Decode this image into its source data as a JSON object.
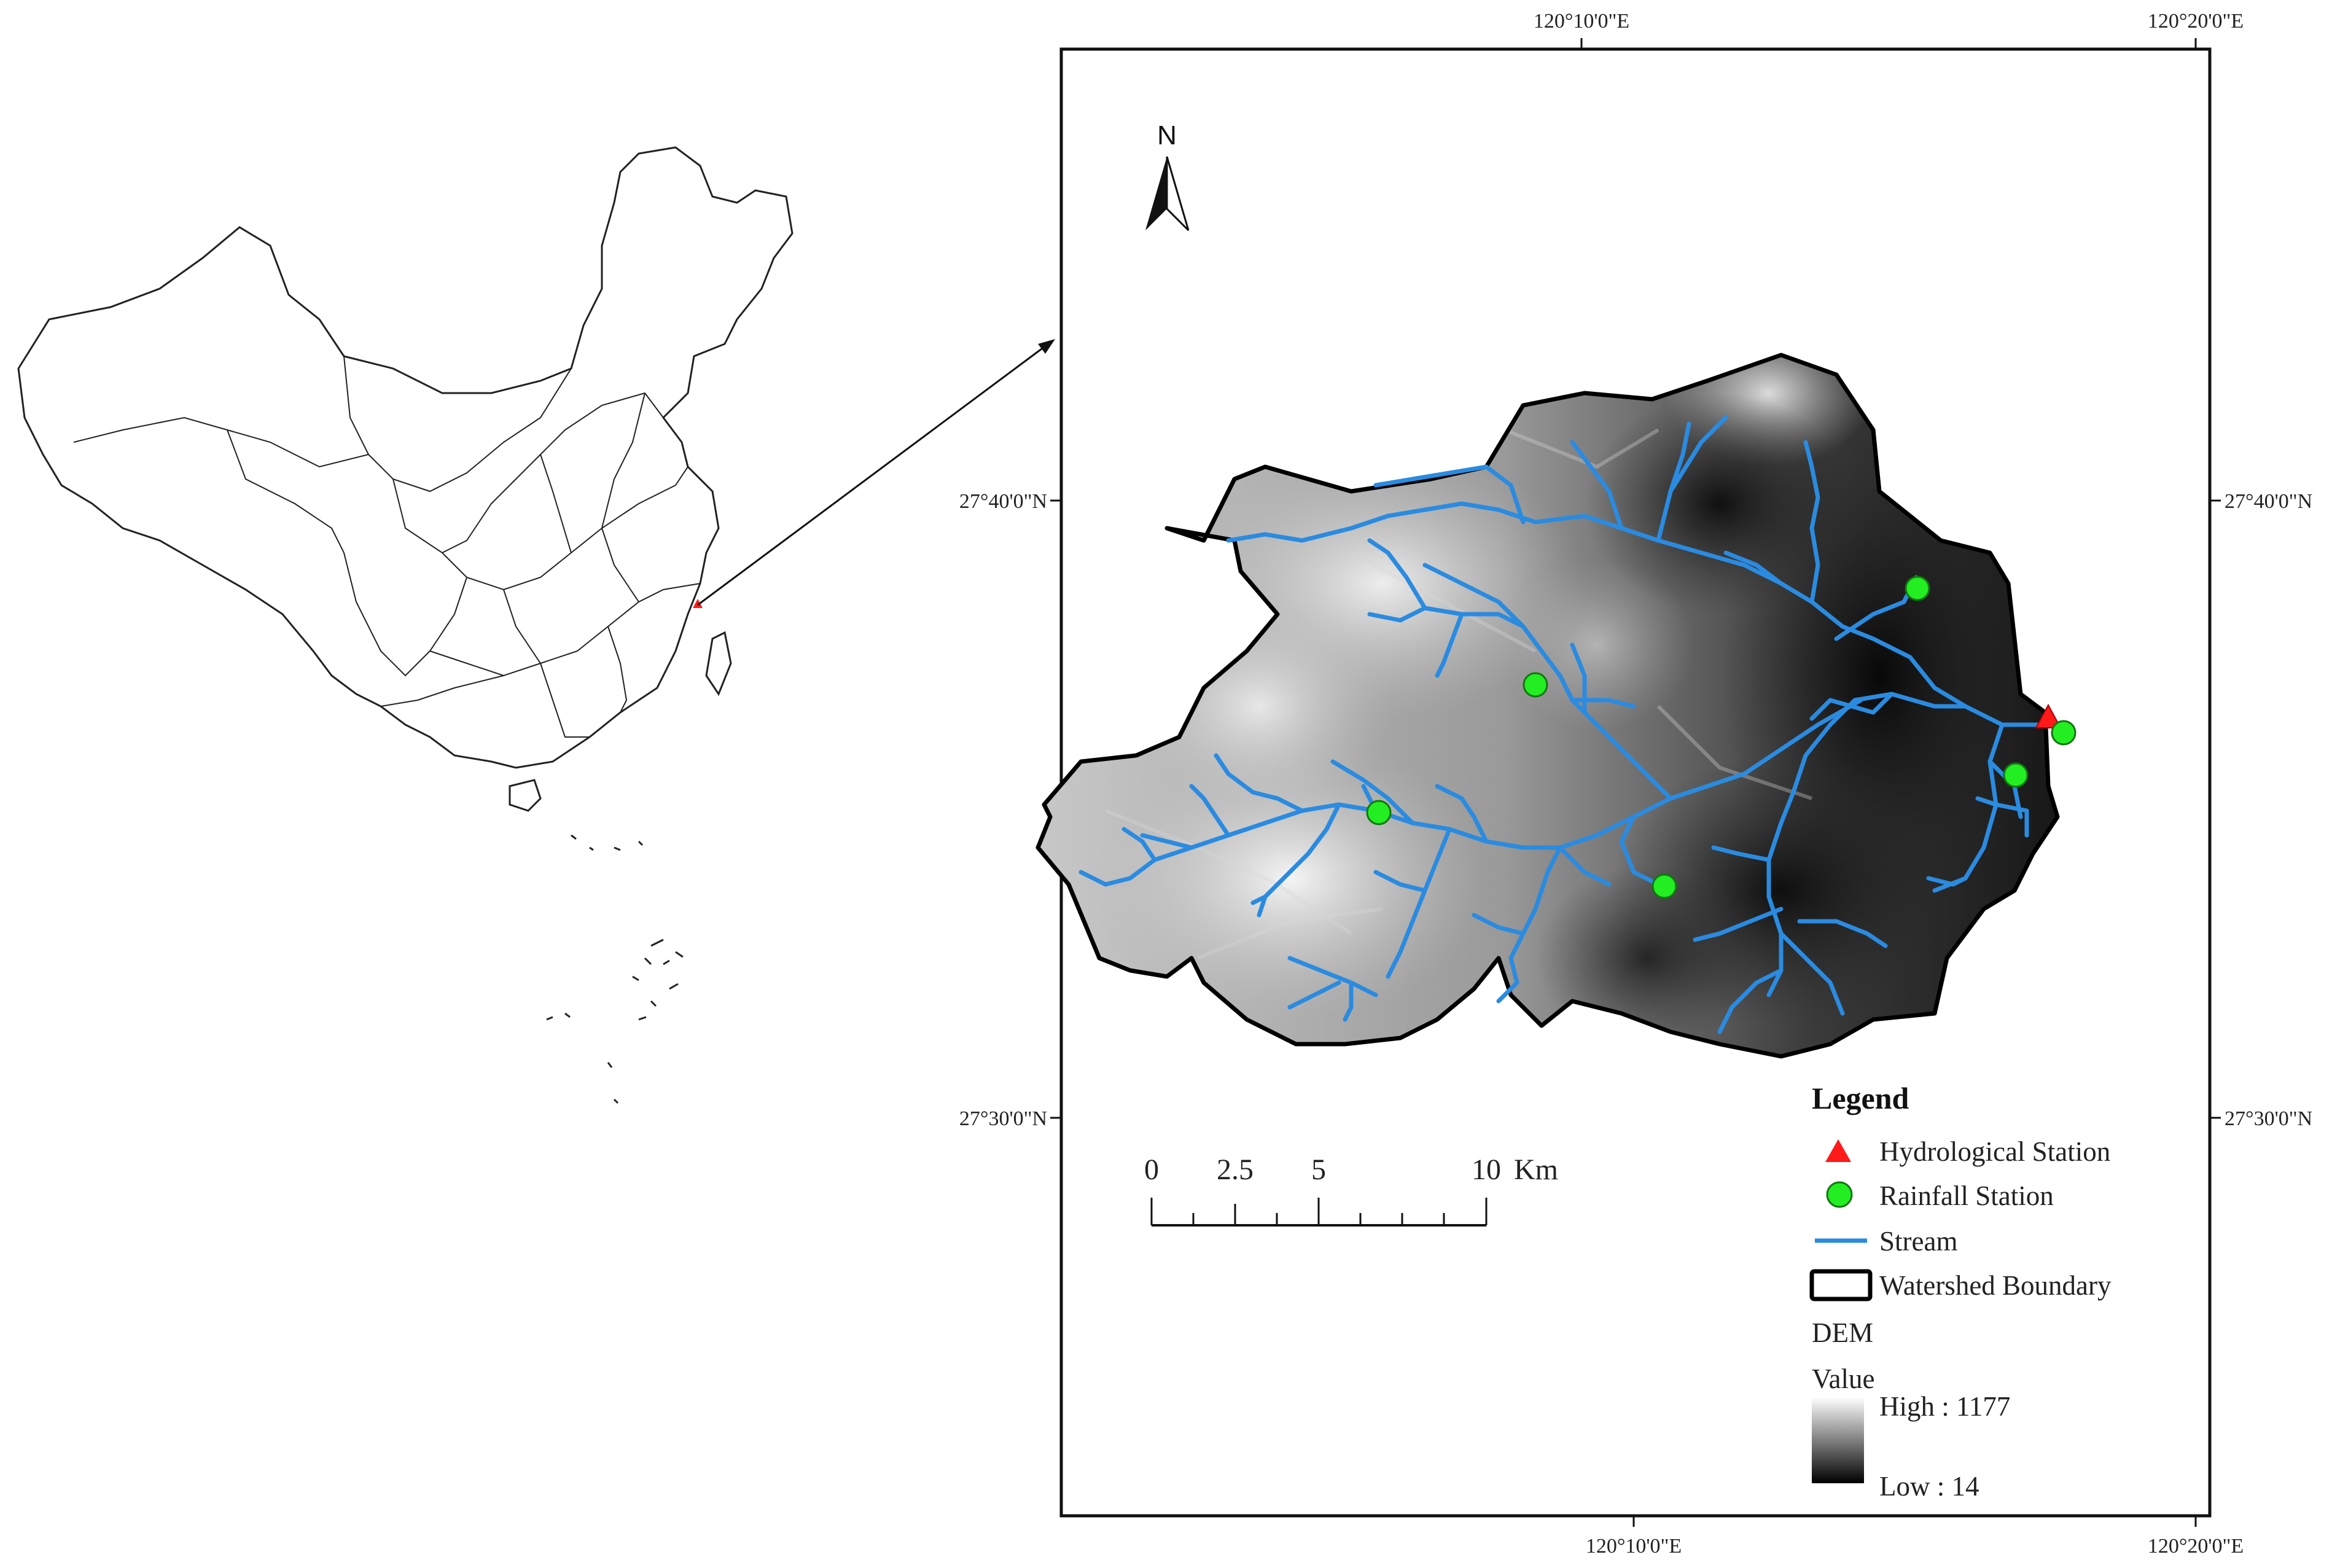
{
  "graticule": {
    "top_labels": [
      "120°10'0\"E",
      "120°20'0\"E"
    ],
    "bottom_labels": [
      "120°10'0\"E",
      "120°20'0\"E"
    ],
    "left_labels": [
      "27°40'0\"N",
      "27°30'0\"N"
    ],
    "right_labels": [
      "27°40'0\"N",
      "27°30'0\"N"
    ]
  },
  "north_arrow": {
    "label": "N",
    "icon": "north-arrow-icon"
  },
  "scale_bar": {
    "ticks": [
      "0",
      "2.5",
      "5",
      "10"
    ],
    "unit": "Km"
  },
  "legend": {
    "title": "Legend",
    "items": [
      {
        "label": "Hydrological Station",
        "icon": "red-triangle-icon",
        "color": "#ff1a1a"
      },
      {
        "label": "Rainfall Station",
        "icon": "green-circle-icon",
        "color": "#22ee22"
      },
      {
        "label": "Stream",
        "icon": "blue-line-icon",
        "color": "#2a8be0"
      },
      {
        "label": "Watershed Boundary",
        "icon": "black-rectangle-icon",
        "color": "#000000"
      }
    ],
    "dem_title": "DEM",
    "dem_value_label": "Value",
    "dem_high": "High : 1177",
    "dem_low": "Low : 14"
  },
  "colors": {
    "stream": "#2a8be0",
    "rainfall_station": "#22ee22",
    "hydrological_station": "#ff1a1a",
    "boundary": "#000000"
  }
}
